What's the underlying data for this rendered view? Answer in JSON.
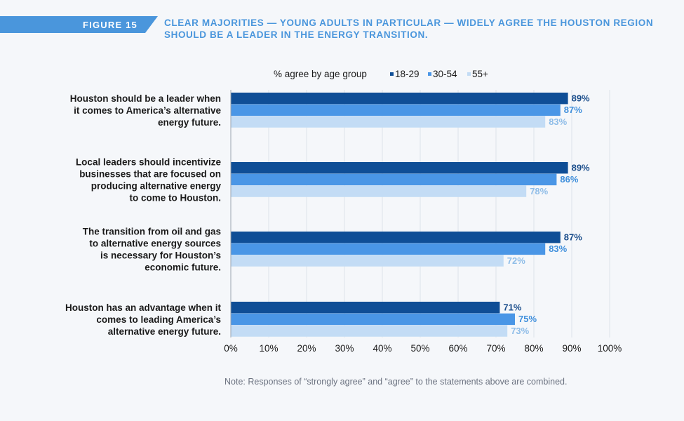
{
  "figure": {
    "label": "FIGURE 15",
    "title": "CLEAR MAJORITIES — YOUNG ADULTS IN PARTICULAR — WIDELY AGREE THE HOUSTON REGION SHOULD BE A LEADER IN THE ENERGY TRANSITION."
  },
  "colors": {
    "tab": "#4a96dc",
    "title": "#4a96dc",
    "series_18_29": "#0f4e96",
    "series_30_54": "#4a96e6",
    "series_55_plus": "#c3dcf5",
    "label_18_29": "#1b4e8c",
    "label_30_54": "#3f8fdc",
    "label_55_plus": "#8fbde8",
    "grid": "#dde3ea",
    "text": "#1a1a1a"
  },
  "chart_data": {
    "type": "bar",
    "orientation": "horizontal",
    "legend_title": "% agree by age group",
    "categories": [
      "Houston should be a leader when it comes to America’s alternative energy future.",
      "Local leaders should incentivize businesses that are focused on producing alternative energy to come to Houston.",
      "The transition from oil and gas to alternative energy sources is necessary for Houston’s economic future.",
      "Houston has an advantage when it comes to leading America’s alternative energy future."
    ],
    "category_lines": [
      [
        "Houston should be a leader when",
        "it comes to America’s alternative",
        "energy future."
      ],
      [
        "Local leaders should incentivize",
        "businesses that are focused on",
        "producing alternative energy",
        "to come to Houston."
      ],
      [
        "The transition from oil and gas",
        "to alternative energy sources",
        "is necessary for Houston’s",
        "economic future."
      ],
      [
        "Houston has an advantage when it",
        "comes to leading America’s",
        "alternative energy future."
      ]
    ],
    "series": [
      {
        "name": "18-29",
        "values": [
          89,
          89,
          87,
          71
        ]
      },
      {
        "name": "30-54",
        "values": [
          87,
          86,
          83,
          75
        ]
      },
      {
        "name": "55+",
        "values": [
          83,
          78,
          72,
          73
        ]
      }
    ],
    "xlim": [
      0,
      100
    ],
    "ticks": [
      0,
      10,
      20,
      30,
      40,
      50,
      60,
      70,
      80,
      90,
      100
    ],
    "tick_suffix": "%",
    "grid": true,
    "legend_position": "top"
  },
  "note": "Note: Responses of “strongly agree” and “agree” to the statements above are combined."
}
